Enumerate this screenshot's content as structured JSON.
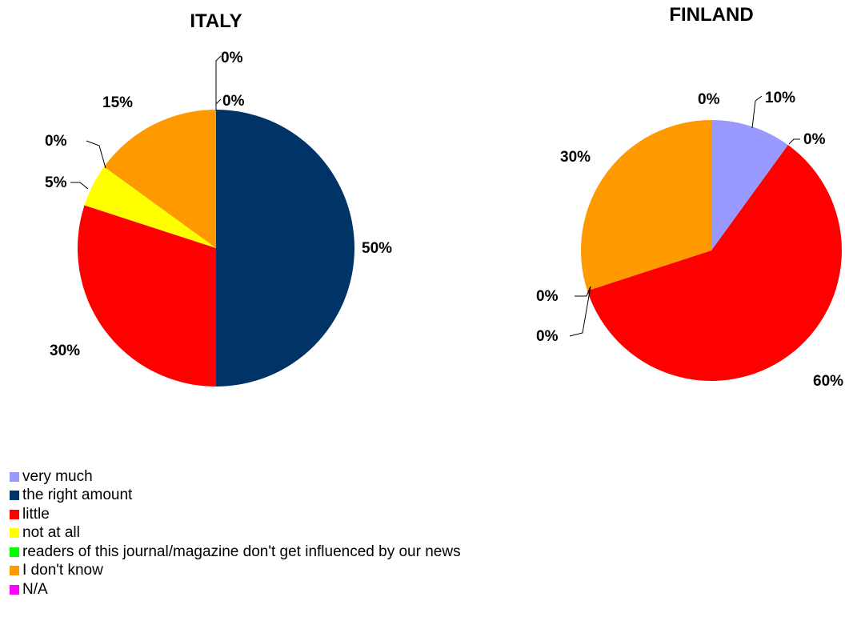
{
  "chart_data": [
    {
      "type": "pie",
      "title": "ITALY",
      "categories": [
        "very much",
        "the right amount",
        "little",
        "not at all",
        "readers of this journal/magazine don't get influenced by our news",
        "I don't know",
        "N/A"
      ],
      "values": [
        0,
        50,
        30,
        5,
        0,
        15,
        0
      ],
      "data_labels": [
        "0%",
        "50%",
        "30%",
        "5%",
        "0%",
        "15%",
        "0%"
      ]
    },
    {
      "type": "pie",
      "title": "FINLAND",
      "categories": [
        "very much",
        "the right amount",
        "little",
        "not at all",
        "readers of this journal/magazine don't get influenced by our news",
        "I don't know",
        "N/A"
      ],
      "values": [
        10,
        0,
        60,
        0,
        0,
        30,
        0
      ],
      "data_labels": [
        "10%",
        "0%",
        "60%",
        "0%",
        "0%",
        "30%",
        "0%"
      ]
    }
  ],
  "legend": {
    "placement": "bottom-left",
    "items": [
      {
        "label": "very much",
        "color": "#9999ff"
      },
      {
        "label": "the right amount",
        "color": "#003366"
      },
      {
        "label": "little",
        "color": "#ff0000"
      },
      {
        "label": "not at all",
        "color": "#ffff00"
      },
      {
        "label": "readers of this journal/magazine don't get influenced by our news",
        "color": "#00ff00"
      },
      {
        "label": "I don't know",
        "color": "#ff9900"
      },
      {
        "label": "N/A",
        "color": "#ff00ff"
      }
    ]
  }
}
